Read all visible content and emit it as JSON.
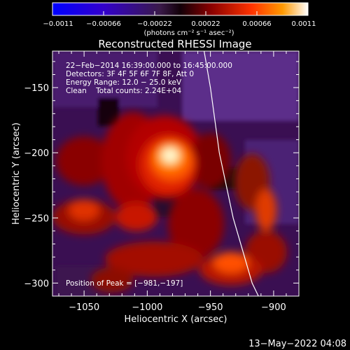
{
  "chart_data": {
    "type": "heatmap",
    "title": "Reconstructed RHESSI Image",
    "xlabel": "Heliocentric X (arcsec)",
    "ylabel": "Heliocentric Y (arcsec)",
    "xlim": [
      -1075,
      -880
    ],
    "ylim": [
      -310,
      -122
    ],
    "xticks": [
      -1050,
      -1000,
      -950,
      -900
    ],
    "yticks": [
      -150,
      -200,
      -250,
      -300
    ],
    "x_tick_labels": [
      "−1050",
      "−1000",
      "−950",
      "−900"
    ],
    "y_tick_labels": [
      "−150",
      "−200",
      "−250",
      "−300"
    ],
    "colorbar": {
      "min": -0.0011,
      "max": 0.0011,
      "ticks": [
        -0.0011,
        -0.00066,
        -0.00022,
        0.00022,
        0.00066,
        0.0011
      ],
      "tick_labels": [
        "−0.0011",
        "−0.00066",
        "−0.00022",
        "0.00022",
        "0.00066",
        "0.0011"
      ],
      "unit_label": "(photons cm⁻² s⁻¹ asec⁻²)"
    },
    "annotations": [
      "22−Feb−2014 16:39:00.000 to 16:45:00.000",
      "Detectors: 3F 4F 5F 6F 7F 8F, Att 0",
      "Energy Range: 12.0 − 25.0 keV",
      "Clean    Total counts: 2.24E+04"
    ],
    "peak_label": "Position of Peak = [−981,−197]",
    "peak": [
      -981,
      -197
    ],
    "limb_points": [
      [
        -955,
        -122
      ],
      [
        -950,
        -150
      ],
      [
        -943,
        -200
      ],
      [
        -932,
        -250
      ],
      [
        -917,
        -300
      ],
      [
        -912,
        -310
      ]
    ]
  },
  "footer": {
    "timestamp": "13−May−2022 04:08"
  }
}
